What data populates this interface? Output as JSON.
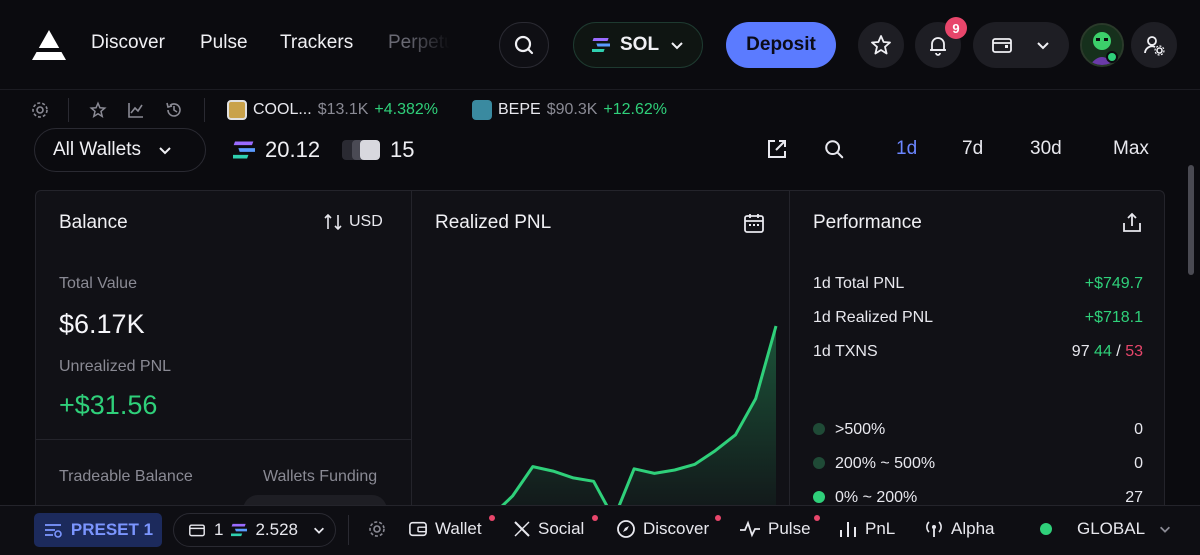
{
  "nav": {
    "links": [
      "Discover",
      "Pulse",
      "Trackers",
      "Perpetuals"
    ],
    "chain": "SOL",
    "deposit_label": "Deposit",
    "notification_count": "9"
  },
  "ticker": {
    "tokens": [
      {
        "name": "COOL...",
        "price": "$13.1K",
        "change": "+4.382%"
      },
      {
        "name": "BEPE",
        "price": "$90.3K",
        "change": "+12.62%"
      }
    ]
  },
  "filters": {
    "wallet_select": "All Wallets",
    "sol_balance": "20.12",
    "wallet_count": "15",
    "ranges": [
      "1d",
      "7d",
      "30d",
      "Max"
    ],
    "active_range": "1d"
  },
  "balance": {
    "title": "Balance",
    "currency": "USD",
    "total_value_label": "Total Value",
    "total_value": "$6.17K",
    "unrealized_label": "Unrealized PNL",
    "unrealized": "+$31.56",
    "tradeable_label": "Tradeable Balance",
    "funding_label": "Wallets Funding"
  },
  "realized": {
    "title": "Realized PNL"
  },
  "chart_data": {
    "type": "area",
    "title": "Realized PNL",
    "xlabel": "",
    "ylabel": "",
    "series": [
      {
        "values": [
          0,
          5,
          22,
          48,
          44,
          38,
          35,
          2,
          46,
          42,
          45,
          50,
          62,
          76,
          108,
          172
        ]
      }
    ],
    "color": "#2fd07a",
    "grid": false
  },
  "performance": {
    "title": "Performance",
    "rows": [
      {
        "label": "1d Total PNL",
        "value": "+$749.7"
      },
      {
        "label": "1d Realized PNL",
        "value": "+$718.1"
      }
    ],
    "txns_label": "1d TXNS",
    "txns_total": "97",
    "txns_buy": "44",
    "txns_sep": "/",
    "txns_sell": "53",
    "buckets": [
      {
        "label": ">500%",
        "count": "0",
        "color": "#1f4a36"
      },
      {
        "label": "200% ~ 500%",
        "count": "0",
        "color": "#1f4a36"
      },
      {
        "label": "0% ~ 200%",
        "count": "27",
        "color": "#2fd07a"
      }
    ]
  },
  "bottombar": {
    "preset": "PRESET 1",
    "wallet_count": "1",
    "sol_amount": "2.528",
    "items": [
      "Wallet",
      "Social",
      "Discover",
      "Pulse",
      "PnL",
      "Alpha"
    ],
    "region": "GLOBAL"
  }
}
